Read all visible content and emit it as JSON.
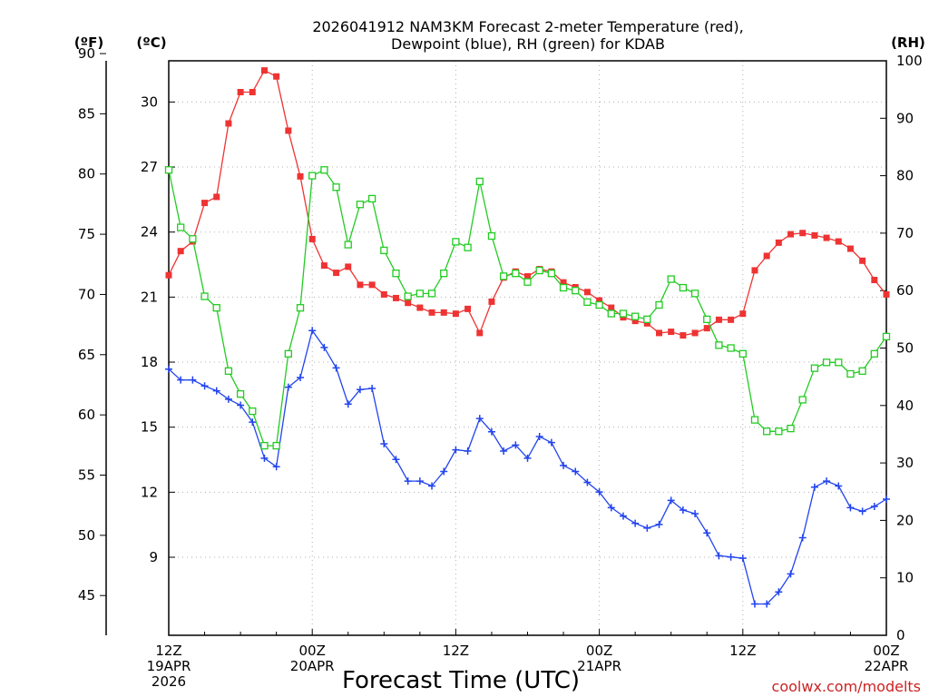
{
  "chart_data": {
    "type": "line",
    "title_line1": "2026041912 NAM3KM Forecast 2-meter Temperature (red),",
    "title_line2": "Dewpoint (blue), RH (green) for KDAB",
    "xlabel": "Forecast Time (UTC)",
    "credit": "coolwx.com/modelts",
    "unit_f": "(ºF)",
    "unit_c": "(ºC)",
    "unit_rh": "(RH)",
    "x_range_hours": [
      0,
      60
    ],
    "c_range": [
      5.4,
      31.9
    ],
    "f_range": [
      41.7,
      89.4
    ],
    "rh_range": [
      0,
      100
    ],
    "x_ticks": [
      {
        "hour": 0,
        "time": "12Z",
        "date": "19APR",
        "year": "2026"
      },
      {
        "hour": 12,
        "time": "00Z",
        "date": "20APR",
        "year": ""
      },
      {
        "hour": 24,
        "time": "12Z",
        "date": "",
        "year": ""
      },
      {
        "hour": 36,
        "time": "00Z",
        "date": "21APR",
        "year": ""
      },
      {
        "hour": 48,
        "time": "12Z",
        "date": "",
        "year": ""
      },
      {
        "hour": 60,
        "time": "00Z",
        "date": "22APR",
        "year": ""
      }
    ],
    "c_ticks": [
      "9",
      "12",
      "15",
      "18",
      "21",
      "24",
      "27",
      "30"
    ],
    "f_ticks": [
      "45",
      "50",
      "55",
      "60",
      "65",
      "70",
      "75",
      "80",
      "85",
      "90"
    ],
    "rh_ticks": [
      "0",
      "10",
      "20",
      "30",
      "40",
      "50",
      "60",
      "70",
      "80",
      "90",
      "100"
    ],
    "hours": [
      0,
      1,
      2,
      3,
      4,
      5,
      6,
      7,
      8,
      9,
      10,
      11,
      12,
      13,
      14,
      15,
      16,
      17,
      18,
      19,
      20,
      21,
      22,
      23,
      24,
      25,
      26,
      27,
      28,
      29,
      30,
      31,
      32,
      33,
      34,
      35,
      36,
      37,
      38,
      39,
      40,
      41,
      42,
      43,
      44,
      45,
      46,
      47,
      48,
      49,
      50,
      51,
      52,
      53,
      54,
      55,
      56,
      57,
      58,
      59,
      60
    ],
    "series": [
      {
        "name": "2-meter Temperature",
        "unit": "F",
        "color": "#ee3333",
        "marker": "filled-square",
        "values": [
          71.6,
          73.6,
          74.4,
          77.6,
          78.1,
          84.2,
          86.8,
          86.8,
          88.6,
          88.1,
          83.6,
          79.8,
          74.6,
          72.4,
          71.8,
          72.3,
          70.8,
          70.8,
          70.0,
          69.7,
          69.3,
          68.9,
          68.5,
          68.5,
          68.4,
          68.8,
          66.8,
          69.4,
          71.4,
          71.9,
          71.5,
          72.1,
          71.9,
          71.0,
          70.6,
          70.2,
          69.5,
          68.9,
          68.1,
          67.8,
          67.6,
          66.8,
          66.9,
          66.6,
          66.8,
          67.2,
          67.9,
          67.9,
          68.4,
          72.0,
          73.2,
          74.3,
          75.0,
          75.1,
          74.9,
          74.7,
          74.4,
          73.8,
          72.8,
          71.2,
          70.0
        ]
      },
      {
        "name": "Dewpoint",
        "unit": "F",
        "color": "#2244ee",
        "marker": "plus",
        "values": [
          63.8,
          62.9,
          62.9,
          62.4,
          62.0,
          61.3,
          60.8,
          59.4,
          56.4,
          55.7,
          62.3,
          63.1,
          67.0,
          65.6,
          63.9,
          60.9,
          62.1,
          62.2,
          57.6,
          56.3,
          54.5,
          54.5,
          54.1,
          55.3,
          57.1,
          57.0,
          59.7,
          58.6,
          57.0,
          57.5,
          56.4,
          58.2,
          57.7,
          55.8,
          55.3,
          54.4,
          53.6,
          52.3,
          51.6,
          51.0,
          50.6,
          50.9,
          52.9,
          52.1,
          51.8,
          50.2,
          48.3,
          48.2,
          48.1,
          44.3,
          44.3,
          45.3,
          46.8,
          49.8,
          54.0,
          54.5,
          54.1,
          52.3,
          52.0,
          52.4,
          53.0
        ]
      },
      {
        "name": "RH",
        "unit": "%",
        "color": "#22cc22",
        "marker": "open-square",
        "values": [
          81,
          71,
          69,
          59,
          57,
          46,
          42,
          39,
          33,
          33,
          49,
          57,
          80,
          81,
          78,
          68,
          75,
          76,
          67,
          63,
          59,
          59.5,
          59.5,
          63,
          68.5,
          67.5,
          79,
          69.5,
          62.5,
          63,
          61.5,
          63.5,
          63,
          60.5,
          60,
          58,
          57.5,
          56,
          56,
          55.5,
          55,
          57.5,
          62,
          60.5,
          59.5,
          55,
          50.5,
          50,
          49,
          37.5,
          35.5,
          35.5,
          36,
          41,
          46.5,
          47.5,
          47.5,
          45.5,
          46,
          49,
          52
        ]
      }
    ]
  }
}
